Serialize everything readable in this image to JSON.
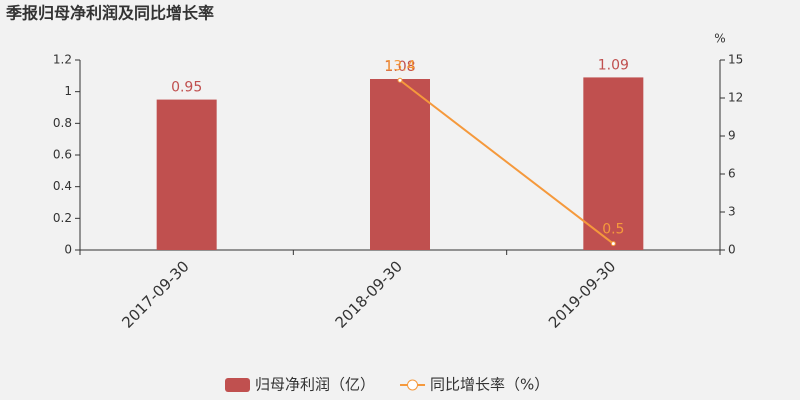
{
  "chart_data": {
    "type": "bar-line",
    "title": "季报归母净利润及同比增长率",
    "categories": [
      "2017-09-30",
      "2018-09-30",
      "2019-09-30"
    ],
    "series": [
      {
        "name": "归母净利润（亿）",
        "type": "bar",
        "color": "#c0504f",
        "values": [
          0.95,
          1.08,
          1.09
        ]
      },
      {
        "name": "同比增长率（%）",
        "type": "line",
        "axis": "y2",
        "color": "#f5993c",
        "values": [
          null,
          13.4,
          0.5
        ]
      }
    ],
    "ylim": [
      0,
      1.2
    ],
    "yticks": [
      0,
      0.2,
      0.4,
      0.6,
      0.8,
      1,
      1.2
    ],
    "y2label": "%",
    "y2lim": [
      0,
      15
    ],
    "y2ticks": [
      0,
      3,
      6,
      9,
      12,
      15
    ],
    "legend": "bottom"
  }
}
